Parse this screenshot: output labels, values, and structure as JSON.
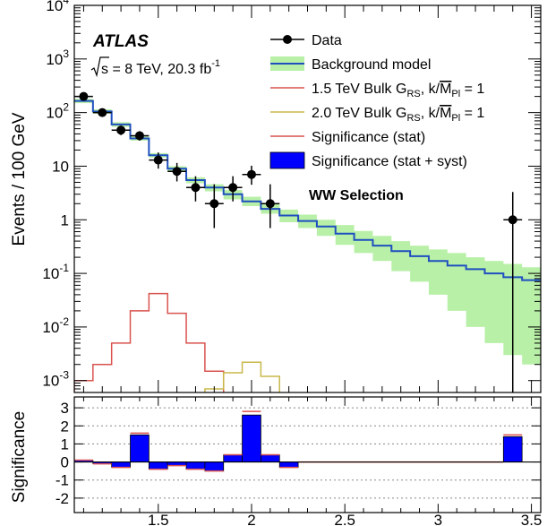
{
  "chart_data": {
    "type": "line",
    "x_ticks": [
      "1.5",
      "2",
      "2.5",
      "3",
      "3.5"
    ],
    "x_range": [
      1.05,
      3.55
    ],
    "top_panel": {
      "ylabel": "Events / 100 GeV",
      "log_y": true,
      "ylim": [
        0.0006,
        10000
      ],
      "y_ticks": [
        {
          "base": "10",
          "exp": "4"
        },
        {
          "base": "10",
          "exp": "3"
        },
        {
          "base": "10",
          "exp": "2"
        },
        {
          "base": "10",
          "exp": ""
        },
        {
          "base": "1",
          "exp": ""
        },
        {
          "base": "10",
          "exp": "-1"
        },
        {
          "base": "10",
          "exp": "-2"
        },
        {
          "base": "10",
          "exp": "-3"
        }
      ],
      "data_points": [
        {
          "x": 1.1,
          "y": 200,
          "xerr": 0.05,
          "ylo": 175,
          "yhi": 230
        },
        {
          "x": 1.2,
          "y": 100,
          "xerr": 0.05,
          "ylo": 85,
          "yhi": 118
        },
        {
          "x": 1.3,
          "y": 47,
          "xerr": 0.05,
          "ylo": 38,
          "yhi": 57
        },
        {
          "x": 1.4,
          "y": 37,
          "xerr": 0.05,
          "ylo": 30,
          "yhi": 45
        },
        {
          "x": 1.5,
          "y": 13,
          "xerr": 0.05,
          "ylo": 9,
          "yhi": 18
        },
        {
          "x": 1.6,
          "y": 8,
          "xerr": 0.05,
          "ylo": 5.2,
          "yhi": 11.5
        },
        {
          "x": 1.7,
          "y": 4,
          "xerr": 0.05,
          "ylo": 2.2,
          "yhi": 6.5
        },
        {
          "x": 1.8,
          "y": 2,
          "xerr": 0.05,
          "ylo": 0.7,
          "yhi": 4.6
        },
        {
          "x": 1.9,
          "y": 4,
          "xerr": 0.05,
          "ylo": 2.2,
          "yhi": 6.5
        },
        {
          "x": 2.0,
          "y": 7,
          "xerr": 0.05,
          "ylo": 4.5,
          "yhi": 10.2
        },
        {
          "x": 2.1,
          "y": 2,
          "xerr": 0.05,
          "ylo": 0.7,
          "yhi": 4.6
        },
        {
          "x": 3.4,
          "y": 1,
          "xerr": 0.05,
          "ylo": 0.0006,
          "yhi": 3.3
        }
      ],
      "background": {
        "edges": [
          1.05,
          1.15,
          1.25,
          1.35,
          1.45,
          1.55,
          1.65,
          1.75,
          1.85,
          1.95,
          2.05,
          2.15,
          2.25,
          2.35,
          2.45,
          2.55,
          2.65,
          2.75,
          2.85,
          2.95,
          3.05,
          3.15,
          3.25,
          3.35,
          3.45,
          3.55
        ],
        "values": [
          165,
          105,
          60,
          33,
          16,
          9.0,
          5.5,
          4.0,
          3.0,
          2.2,
          1.6,
          1.2,
          0.95,
          0.75,
          0.55,
          0.42,
          0.33,
          0.26,
          0.21,
          0.17,
          0.14,
          0.12,
          0.1,
          0.085,
          0.075
        ],
        "band_low": [
          150,
          95,
          54,
          30,
          14.5,
          8.0,
          4.8,
          3.4,
          2.4,
          1.8,
          1.3,
          0.9,
          0.7,
          0.5,
          0.34,
          0.24,
          0.17,
          0.11,
          0.07,
          0.04,
          0.02,
          0.01,
          0.005,
          0.003,
          0.002
        ],
        "band_high": [
          180,
          115,
          66,
          36,
          17.5,
          10,
          6.2,
          4.6,
          3.6,
          2.7,
          2.0,
          1.55,
          1.25,
          1.0,
          0.8,
          0.62,
          0.5,
          0.4,
          0.33,
          0.28,
          0.24,
          0.2,
          0.17,
          0.15,
          0.13
        ]
      },
      "signal_15": {
        "edges": [
          1.05,
          1.15,
          1.25,
          1.35,
          1.45,
          1.55,
          1.65,
          1.75,
          1.85
        ],
        "values": [
          0.001,
          0.002,
          0.005,
          0.02,
          0.042,
          0.018,
          0.005,
          0.0015
        ]
      },
      "signal_20": {
        "edges": [
          1.75,
          1.85,
          1.95,
          2.05,
          2.15
        ],
        "values": [
          0.0007,
          0.0014,
          0.0022,
          0.0012
        ]
      }
    },
    "bottom_panel": {
      "ylabel": "Significance",
      "ylim": [
        -2.8,
        3.6
      ],
      "y_ticks": [
        "3",
        "2",
        "1",
        "0",
        "-1",
        "-2"
      ],
      "edges": [
        1.05,
        1.15,
        1.25,
        1.35,
        1.45,
        1.55,
        1.65,
        1.75,
        1.85,
        1.95,
        2.05,
        2.15,
        2.25,
        2.35,
        3.35,
        3.45
      ],
      "stat": [
        0.1,
        -0.1,
        -0.3,
        1.6,
        -0.4,
        -0.2,
        -0.4,
        -0.5,
        0.4,
        2.8,
        0.4,
        -0.3,
        0.0,
        0.0,
        1.5
      ],
      "stat_syst": [
        0.1,
        -0.1,
        -0.3,
        1.5,
        -0.4,
        -0.2,
        -0.4,
        -0.5,
        0.4,
        2.6,
        0.4,
        -0.3,
        0.0,
        0.0,
        1.4
      ]
    },
    "legend": [
      {
        "label": "Data",
        "kind": "marker"
      },
      {
        "label": "Background model",
        "kind": "band"
      },
      {
        "label": "1.5 TeV Bulk G",
        "sub": "RS",
        "tail": ", k/",
        "mbar": "M",
        "msub": "Pl",
        "eq": " = 1",
        "kind": "line",
        "color": "#d9534f"
      },
      {
        "label": "2.0 TeV Bulk G",
        "sub": "RS",
        "tail": ", k/",
        "mbar": "M",
        "msub": "Pl",
        "eq": " = 1",
        "kind": "line",
        "color": "#c8b84a"
      },
      {
        "label": "Significance (stat)",
        "kind": "line",
        "color": "#d9534f"
      },
      {
        "label": "Significance (stat + syst)",
        "kind": "fill",
        "color": "#0000ff"
      }
    ],
    "annotations": {
      "atlas": "ATLAS",
      "energy_prefix": "s = 8 TeV, 20.3 fb",
      "energy_exp": "-1",
      "selection": "WW Selection"
    },
    "colors": {
      "background_line": "#1f4fbf",
      "background_band": "#b9f0a8",
      "signal_15": "#d9534f",
      "signal_20": "#c8b84a",
      "sig_fill": "#0000ff",
      "sig_stat": "#d9534f"
    }
  }
}
